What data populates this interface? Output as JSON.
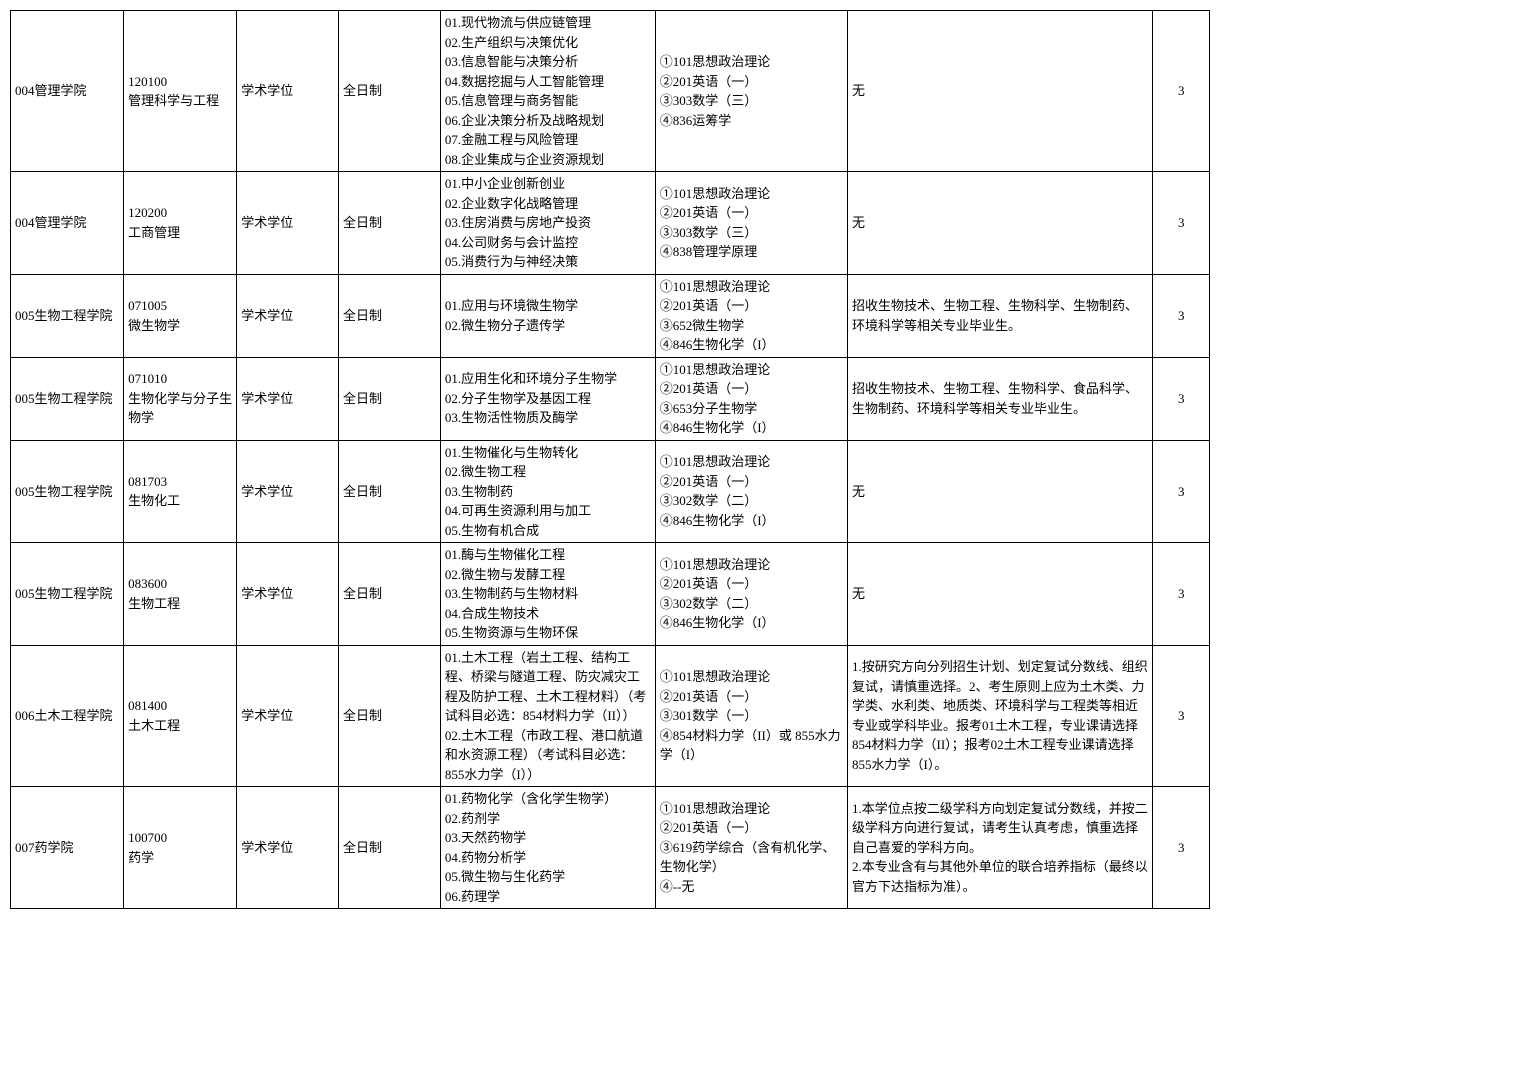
{
  "rows": [
    {
      "dept": "004管理学院",
      "major": "120100\n管理科学与工程",
      "degree": "学术学位",
      "mode": "全日制",
      "directions": "01.现代物流与供应链管理\n02.生产组织与决策优化\n03.信息智能与决策分析\n04.数据挖掘与人工智能管理\n05.信息管理与商务智能\n06.企业决策分析及战略规划\n07.金融工程与风险管理\n08.企业集成与企业资源规划",
      "exams": "①101思想政治理论\n②201英语（一）\n③303数学（三）\n④836运筹学",
      "note": "无",
      "num": "3"
    },
    {
      "dept": "004管理学院",
      "major": "120200\n工商管理",
      "degree": "学术学位",
      "mode": "全日制",
      "directions": "01.中小企业创新创业\n02.企业数字化战略管理\n03.住房消费与房地产投资\n04.公司财务与会计监控\n05.消费行为与神经决策",
      "exams": "①101思想政治理论\n②201英语（一）\n③303数学（三）\n④838管理学原理",
      "note": "无",
      "num": "3"
    },
    {
      "dept": "005生物工程学院",
      "major": "071005\n微生物学",
      "degree": "学术学位",
      "mode": "全日制",
      "directions": "01.应用与环境微生物学\n02.微生物分子遗传学",
      "exams": "①101思想政治理论\n②201英语（一）\n③652微生物学\n④846生物化学（I）",
      "note": "招收生物技术、生物工程、生物科学、生物制药、环境科学等相关专业毕业生。",
      "num": "3"
    },
    {
      "dept": "005生物工程学院",
      "major": "071010\n生物化学与分子生物学",
      "degree": "学术学位",
      "mode": "全日制",
      "directions": "01.应用生化和环境分子生物学\n02.分子生物学及基因工程\n03.生物活性物质及酶学",
      "exams": "①101思想政治理论\n②201英语（一）\n③653分子生物学\n④846生物化学（I）",
      "note": "招收生物技术、生物工程、生物科学、食品科学、生物制药、环境科学等相关专业毕业生。",
      "num": "3"
    },
    {
      "dept": "005生物工程学院",
      "major": "081703\n生物化工",
      "degree": "学术学位",
      "mode": "全日制",
      "directions": "01.生物催化与生物转化\n02.微生物工程\n03.生物制药\n04.可再生资源利用与加工\n05.生物有机合成",
      "exams": "①101思想政治理论\n②201英语（一）\n③302数学（二）\n④846生物化学（I）",
      "note": "无",
      "num": "3"
    },
    {
      "dept": "005生物工程学院",
      "major": "083600\n生物工程",
      "degree": "学术学位",
      "mode": "全日制",
      "directions": "01.酶与生物催化工程\n02.微生物与发酵工程\n03.生物制药与生物材料\n04.合成生物技术\n05.生物资源与生物环保",
      "exams": "①101思想政治理论\n②201英语（一）\n③302数学（二）\n④846生物化学（I）",
      "note": "无",
      "num": "3"
    },
    {
      "dept": "006土木工程学院",
      "major": "081400\n土木工程",
      "degree": "学术学位",
      "mode": "全日制",
      "directions": "01.土木工程（岩土工程、结构工程、桥梁与隧道工程、防灾减灾工程及防护工程、土木工程材料）（考试科目必选：854材料力学（II））\n02.土木工程（市政工程、港口航道和水资源工程）（考试科目必选：855水力学（I））",
      "exams": "①101思想政治理论\n②201英语（一）\n③301数学（一）\n④854材料力学（II）或 855水力学（I）",
      "note": "1.按研究方向分列招生计划、划定复试分数线、组织复试，请慎重选择。2、考生原则上应为土木类、力学类、水利类、地质类、环境科学与工程类等相近专业或学科毕业。报考01土木工程，专业课请选择854材料力学（II）；报考02土木工程专业课请选择855水力学（I）。",
      "num": "3"
    },
    {
      "dept": "007药学院",
      "major": "100700\n药学",
      "degree": "学术学位",
      "mode": "全日制",
      "directions": "01.药物化学（含化学生物学）\n02.药剂学\n03.天然药物学\n04.药物分析学\n05.微生物与生化药学\n06.药理学",
      "exams": "①101思想政治理论\n②201英语（一）\n③619药学综合（含有机化学、生物化学）\n④--无",
      "note": "1.本学位点按二级学科方向划定复试分数线，并按二级学科方向进行复试，请考生认真考虑，慎重选择自己喜爱的学科方向。\n2.本专业含有与其他外单位的联合培养指标（最终以官方下达指标为准）。",
      "num": "3"
    }
  ]
}
